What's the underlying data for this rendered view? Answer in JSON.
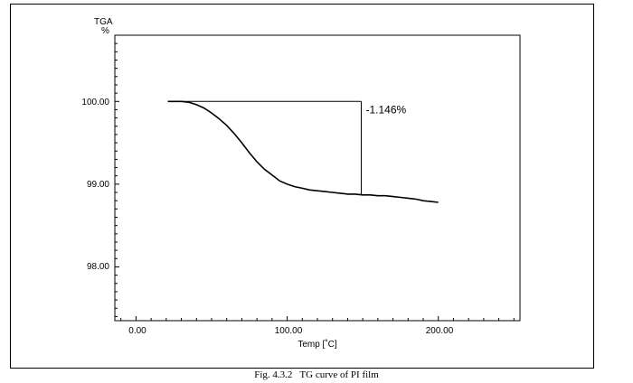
{
  "caption": {
    "number": "Fig. 4.3.2",
    "text": "TG curve of PI film"
  },
  "chart_data": {
    "type": "line",
    "title": "",
    "ylabel": "TGA",
    "yunit": "%",
    "xlabel": "Temp [˚C]",
    "xlim": [
      -14,
      254
    ],
    "ylim": [
      97.35,
      100.8
    ],
    "x_ticks": [
      {
        "value": 0,
        "label": "0.00"
      },
      {
        "value": 100,
        "label": "100.00"
      },
      {
        "value": 200,
        "label": "200.00"
      }
    ],
    "y_ticks": [
      {
        "value": 100,
        "label": "100.00"
      },
      {
        "value": 99,
        "label": "99.00"
      },
      {
        "value": 98,
        "label": "98.00"
      }
    ],
    "grid": false,
    "legend": "none",
    "series": [
      {
        "x": [
          21,
          25,
          30,
          35,
          40,
          45,
          50,
          55,
          60,
          65,
          70,
          75,
          80,
          85,
          90,
          95,
          100,
          105,
          110,
          115,
          120,
          125,
          130,
          135,
          140,
          145,
          150,
          155,
          160,
          165,
          170,
          175,
          180,
          185,
          190,
          195,
          200
        ],
        "y": [
          100.0,
          100.0,
          100.0,
          99.99,
          99.96,
          99.92,
          99.86,
          99.79,
          99.71,
          99.61,
          99.5,
          99.38,
          99.27,
          99.18,
          99.11,
          99.04,
          99.0,
          98.97,
          98.95,
          98.93,
          98.92,
          98.91,
          98.9,
          98.89,
          98.88,
          98.88,
          98.87,
          98.87,
          98.86,
          98.86,
          98.85,
          98.84,
          98.83,
          98.82,
          98.8,
          98.79,
          98.78
        ]
      }
    ],
    "annotation": {
      "label": "-1.146%",
      "x_start": 21,
      "x_end": 149,
      "y_top": 100.0,
      "y_bottom": 98.87
    }
  }
}
